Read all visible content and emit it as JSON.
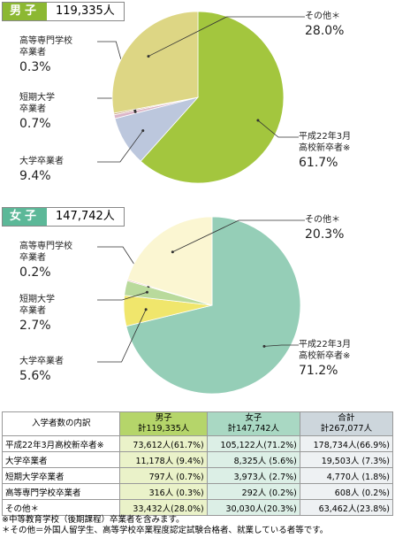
{
  "chart_data": [
    {
      "type": "pie",
      "title": "男子",
      "subtitle": "119,335人",
      "header_color": "#8cb832",
      "categories": [
        "平成22年3月\n高校新卒者※",
        "大学卒業者",
        "短期大学\n卒業者",
        "高等専門学校\n卒業者",
        "その他＊"
      ],
      "values": [
        61.7,
        9.4,
        0.7,
        0.3,
        28.0
      ],
      "value_labels": [
        "61.7%",
        "9.4%",
        "0.7%",
        "0.3%",
        "28.0%"
      ],
      "colors": [
        "#a3c63e",
        "#bcc7dd",
        "#dcb6c8",
        "#c9a07a",
        "#ddd684"
      ]
    },
    {
      "type": "pie",
      "title": "女子",
      "subtitle": "147,742人",
      "header_color": "#5cb898",
      "categories": [
        "平成22年3月\n高校新卒者※",
        "大学卒業者",
        "短期大学\n卒業者",
        "高等専門学校\n卒業者",
        "その他＊"
      ],
      "values": [
        71.2,
        5.6,
        2.7,
        0.2,
        20.3
      ],
      "value_labels": [
        "71.2%",
        "5.6%",
        "2.7%",
        "0.2%",
        "20.3%"
      ],
      "colors": [
        "#95ceb7",
        "#f0e66c",
        "#b9da9c",
        "#e59a9a",
        "#fbf6d2"
      ]
    }
  ],
  "table": {
    "header": [
      "入学者数の内訳",
      "男子\n計119,335人",
      "女子\n計147,742人",
      "合計\n計267,077人"
    ],
    "rows": [
      [
        "平成22年3月高校新卒者※",
        "73,612人(61.7%)",
        "105,122人(71.2%)",
        "178,734人(66.9%)"
      ],
      [
        "大学卒業者",
        "11,178人 (9.4%)",
        "8,325人 (5.6%)",
        "19,503人 (7.3%)"
      ],
      [
        "短期大学卒業者",
        "797人 (0.7%)",
        "3,973人 (2.7%)",
        "4,770人 (1.8%)"
      ],
      [
        "高等専門学校卒業者",
        "316人 (0.3%)",
        "292人 (0.2%)",
        "608人 (0.2%)"
      ],
      [
        "その他＊",
        "33,432人(28.0%)",
        "30,030人(20.3%)",
        "63,462人(23.8%)"
      ]
    ]
  },
  "notes": [
    "※中等教育学校（後期課程）卒業者を含みます。",
    "＊その他＝外国人留学生、高等学校卒業程度認定試験合格者、就業している者等です。"
  ]
}
